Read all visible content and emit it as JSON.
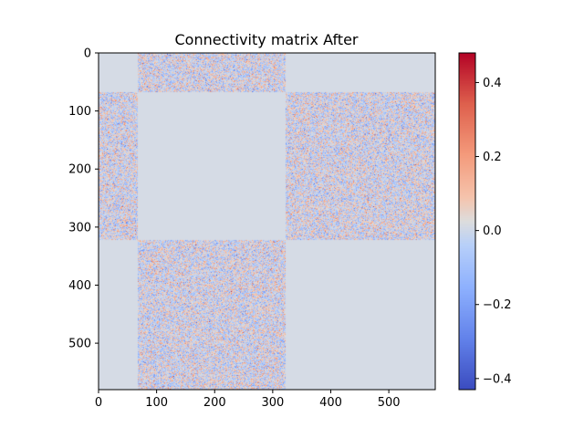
{
  "chart_data": {
    "type": "heatmap",
    "title": "Connectivity matrix After",
    "xlabel": "",
    "ylabel": "",
    "matrix_size": 580,
    "xlim": [
      0,
      580
    ],
    "ylim": [
      580,
      0
    ],
    "xticks": [
      0,
      100,
      200,
      300,
      400,
      500
    ],
    "yticks": [
      0,
      100,
      200,
      300,
      400,
      500
    ],
    "colormap": "coolwarm",
    "colorbar": {
      "vmin": -0.43,
      "vmax": 0.48,
      "ticks": [
        -0.4,
        -0.2,
        0.0,
        0.2,
        0.4
      ],
      "tick_labels": [
        "−0.4",
        "−0.2",
        "0.0",
        "0.2",
        "0.4"
      ]
    },
    "zero_color": "#d5dbe5",
    "grid": false,
    "blocks": [
      {
        "rows": [
          0,
          68
        ],
        "cols": [
          68,
          322
        ],
        "pattern": "random",
        "value_range": [
          -0.43,
          0.48
        ]
      },
      {
        "rows": [
          68,
          322
        ],
        "cols": [
          0,
          68
        ],
        "pattern": "random",
        "value_range": [
          -0.43,
          0.48
        ]
      },
      {
        "rows": [
          68,
          322
        ],
        "cols": [
          322,
          580
        ],
        "pattern": "random",
        "value_range": [
          -0.43,
          0.48
        ]
      },
      {
        "rows": [
          322,
          580
        ],
        "cols": [
          68,
          322
        ],
        "pattern": "random",
        "value_range": [
          -0.43,
          0.48
        ]
      }
    ],
    "zero_blocks": [
      {
        "rows": [
          0,
          68
        ],
        "cols": [
          0,
          68
        ]
      },
      {
        "rows": [
          0,
          68
        ],
        "cols": [
          322,
          580
        ]
      },
      {
        "rows": [
          68,
          322
        ],
        "cols": [
          68,
          322
        ]
      },
      {
        "rows": [
          322,
          580
        ],
        "cols": [
          0,
          68
        ]
      },
      {
        "rows": [
          322,
          580
        ],
        "cols": [
          322,
          580
        ]
      }
    ]
  }
}
